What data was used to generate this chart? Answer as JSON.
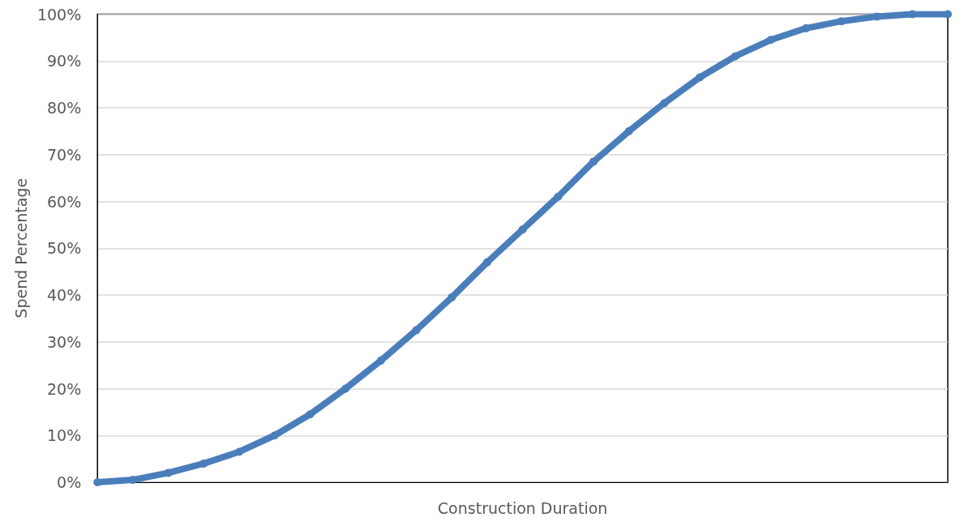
{
  "chart_data": {
    "type": "line",
    "xlabel": "Construction Duration",
    "ylabel": "Spend Percentage",
    "categories": [
      null,
      null,
      null,
      null,
      null,
      null,
      null,
      null,
      null,
      null,
      null,
      null,
      null,
      null,
      null,
      null,
      null,
      null,
      null,
      null,
      null,
      null,
      null,
      null,
      null
    ],
    "series": [
      {
        "color": "#4a7ebb",
        "values": [
          0,
          0.5,
          2,
          4,
          6.5,
          10,
          14.5,
          20,
          26,
          32.5,
          39.5,
          47,
          54,
          61,
          68.5,
          75,
          81,
          86.5,
          91,
          94.5,
          97,
          98.5,
          99.5,
          100,
          100
        ]
      }
    ],
    "ylim": [
      0,
      100
    ],
    "yticks": [
      {
        "value": 0,
        "label": "0%"
      },
      {
        "value": 10,
        "label": "10%"
      },
      {
        "value": 20,
        "label": "20%"
      },
      {
        "value": 30,
        "label": "30%"
      },
      {
        "value": 40,
        "label": "40%"
      },
      {
        "value": 50,
        "label": "50%"
      },
      {
        "value": 60,
        "label": "60%"
      },
      {
        "value": 70,
        "label": "70%"
      },
      {
        "value": 80,
        "label": "80%"
      },
      {
        "value": 90,
        "label": "90%"
      },
      {
        "value": 100,
        "label": "100%"
      }
    ],
    "grid": "y",
    "tick_labels": "y",
    "marker": "circle",
    "line_style": "solid"
  }
}
